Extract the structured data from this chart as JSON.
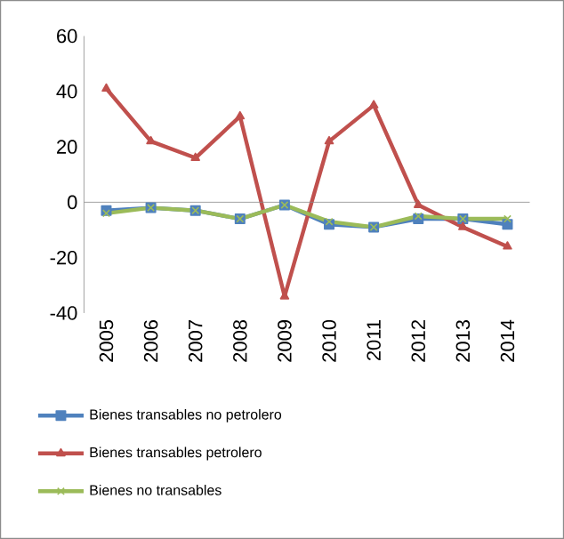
{
  "chart_data": {
    "type": "line",
    "categories": [
      "2005",
      "2006",
      "2007",
      "2008",
      "2009",
      "2010",
      "2011",
      "2012",
      "2013",
      "2014"
    ],
    "series": [
      {
        "name": "Bienes transables no petrolero",
        "color": "#4f81bd",
        "marker": "square",
        "values": [
          -3,
          -2,
          -3,
          -6,
          -1,
          -8,
          -9,
          -6,
          -6,
          -8
        ]
      },
      {
        "name": "Bienes transables petrolero",
        "color": "#c0504d",
        "marker": "triangle",
        "values": [
          41,
          22,
          16,
          31,
          -34,
          22,
          35,
          -1,
          -9,
          -16
        ]
      },
      {
        "name": "Bienes no transables",
        "color": "#9bbb59",
        "marker": "cross",
        "values": [
          -4,
          -2,
          -3,
          -6,
          -1,
          -7,
          -9,
          -5,
          -6,
          -6
        ]
      }
    ],
    "ylim": [
      -40,
      60
    ],
    "yticks": [
      -40,
      -20,
      0,
      20,
      40,
      60
    ],
    "legend": "bottom"
  }
}
